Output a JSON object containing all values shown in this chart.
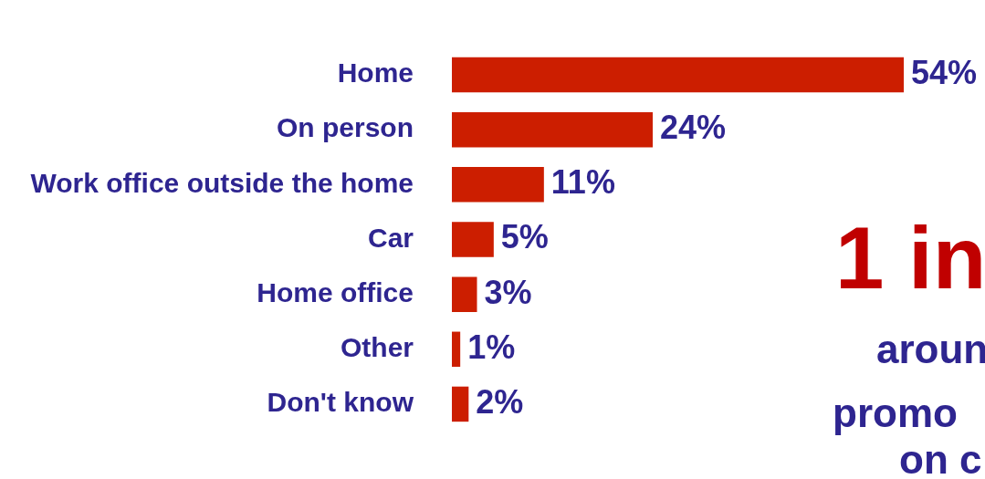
{
  "chart_data": {
    "type": "bar",
    "orientation": "horizontal",
    "categories": [
      "Home",
      "On person",
      "Work office outside the home",
      "Car",
      "Home office",
      "Other",
      "Don't know"
    ],
    "values": [
      54,
      24,
      11,
      5,
      3,
      1,
      2
    ],
    "color": "#cc1e00",
    "value_labels": [
      "54%",
      "24%",
      "11%",
      "5%",
      "3%",
      "1%",
      "2%"
    ],
    "annotations": [
      "1 in",
      "aroun",
      "promo",
      "on c"
    ]
  }
}
